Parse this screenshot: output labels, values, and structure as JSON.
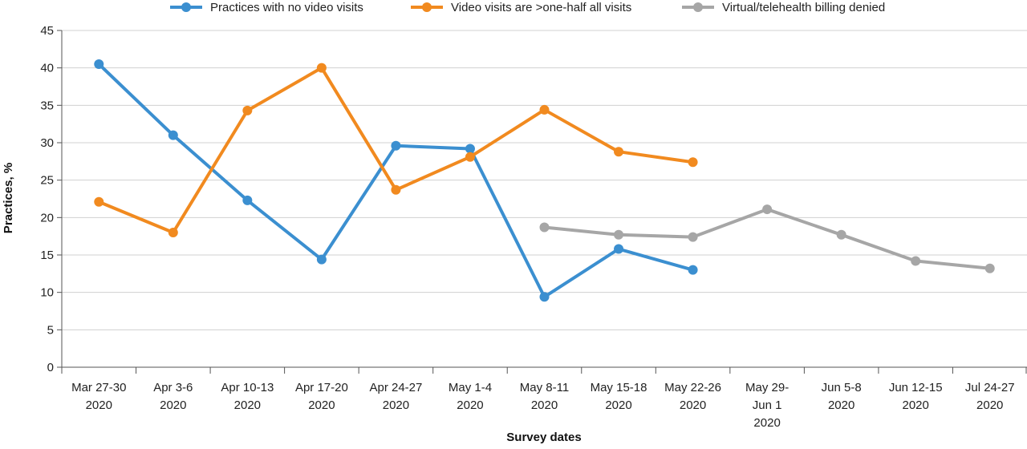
{
  "chart_data": {
    "type": "line",
    "title": "",
    "xlabel": "Survey dates",
    "ylabel": "Practices, %",
    "ylim": [
      0,
      45
    ],
    "yticks": [
      0,
      5,
      10,
      15,
      20,
      25,
      30,
      35,
      40,
      45
    ],
    "grid": "horizontal",
    "legend_position": "top",
    "categories": [
      [
        "Mar 27-30",
        "2020"
      ],
      [
        "Apr 3-6",
        "2020"
      ],
      [
        "Apr 10-13",
        "2020"
      ],
      [
        "Apr 17-20",
        "2020"
      ],
      [
        "Apr 24-27",
        "2020"
      ],
      [
        "May 1-4",
        "2020"
      ],
      [
        "May 8-11",
        "2020"
      ],
      [
        "May 15-18",
        "2020"
      ],
      [
        "May 22-26",
        "2020"
      ],
      [
        "May 29-",
        "Jun 1",
        "2020"
      ],
      [
        "Jun 5-8",
        "2020"
      ],
      [
        "Jun 12-15",
        "2020"
      ],
      [
        "Jul 24-27",
        "2020"
      ]
    ],
    "series": [
      {
        "name": "Practices with no video visits",
        "color": "#3b8fd0",
        "values": [
          40.5,
          31,
          22.3,
          14.4,
          29.6,
          29.2,
          9.4,
          15.8,
          13,
          null,
          null,
          null,
          null
        ]
      },
      {
        "name": "Video visits are >one-half all visits",
        "color": "#f18a1f",
        "values": [
          22.1,
          18,
          34.3,
          40,
          23.7,
          28.1,
          null,
          34.4,
          28.8,
          27.4,
          null,
          null,
          null
        ],
        "x_index": [
          0,
          1,
          2,
          3,
          4,
          5,
          null,
          6,
          7,
          8,
          null,
          null,
          null
        ]
      },
      {
        "name": "Virtual/telehealth billing denied",
        "color": "#a6a6a6",
        "values": [
          null,
          null,
          null,
          null,
          null,
          null,
          18.7,
          17.7,
          17.4,
          21.1,
          17.7,
          14.2,
          13.2
        ]
      }
    ]
  }
}
